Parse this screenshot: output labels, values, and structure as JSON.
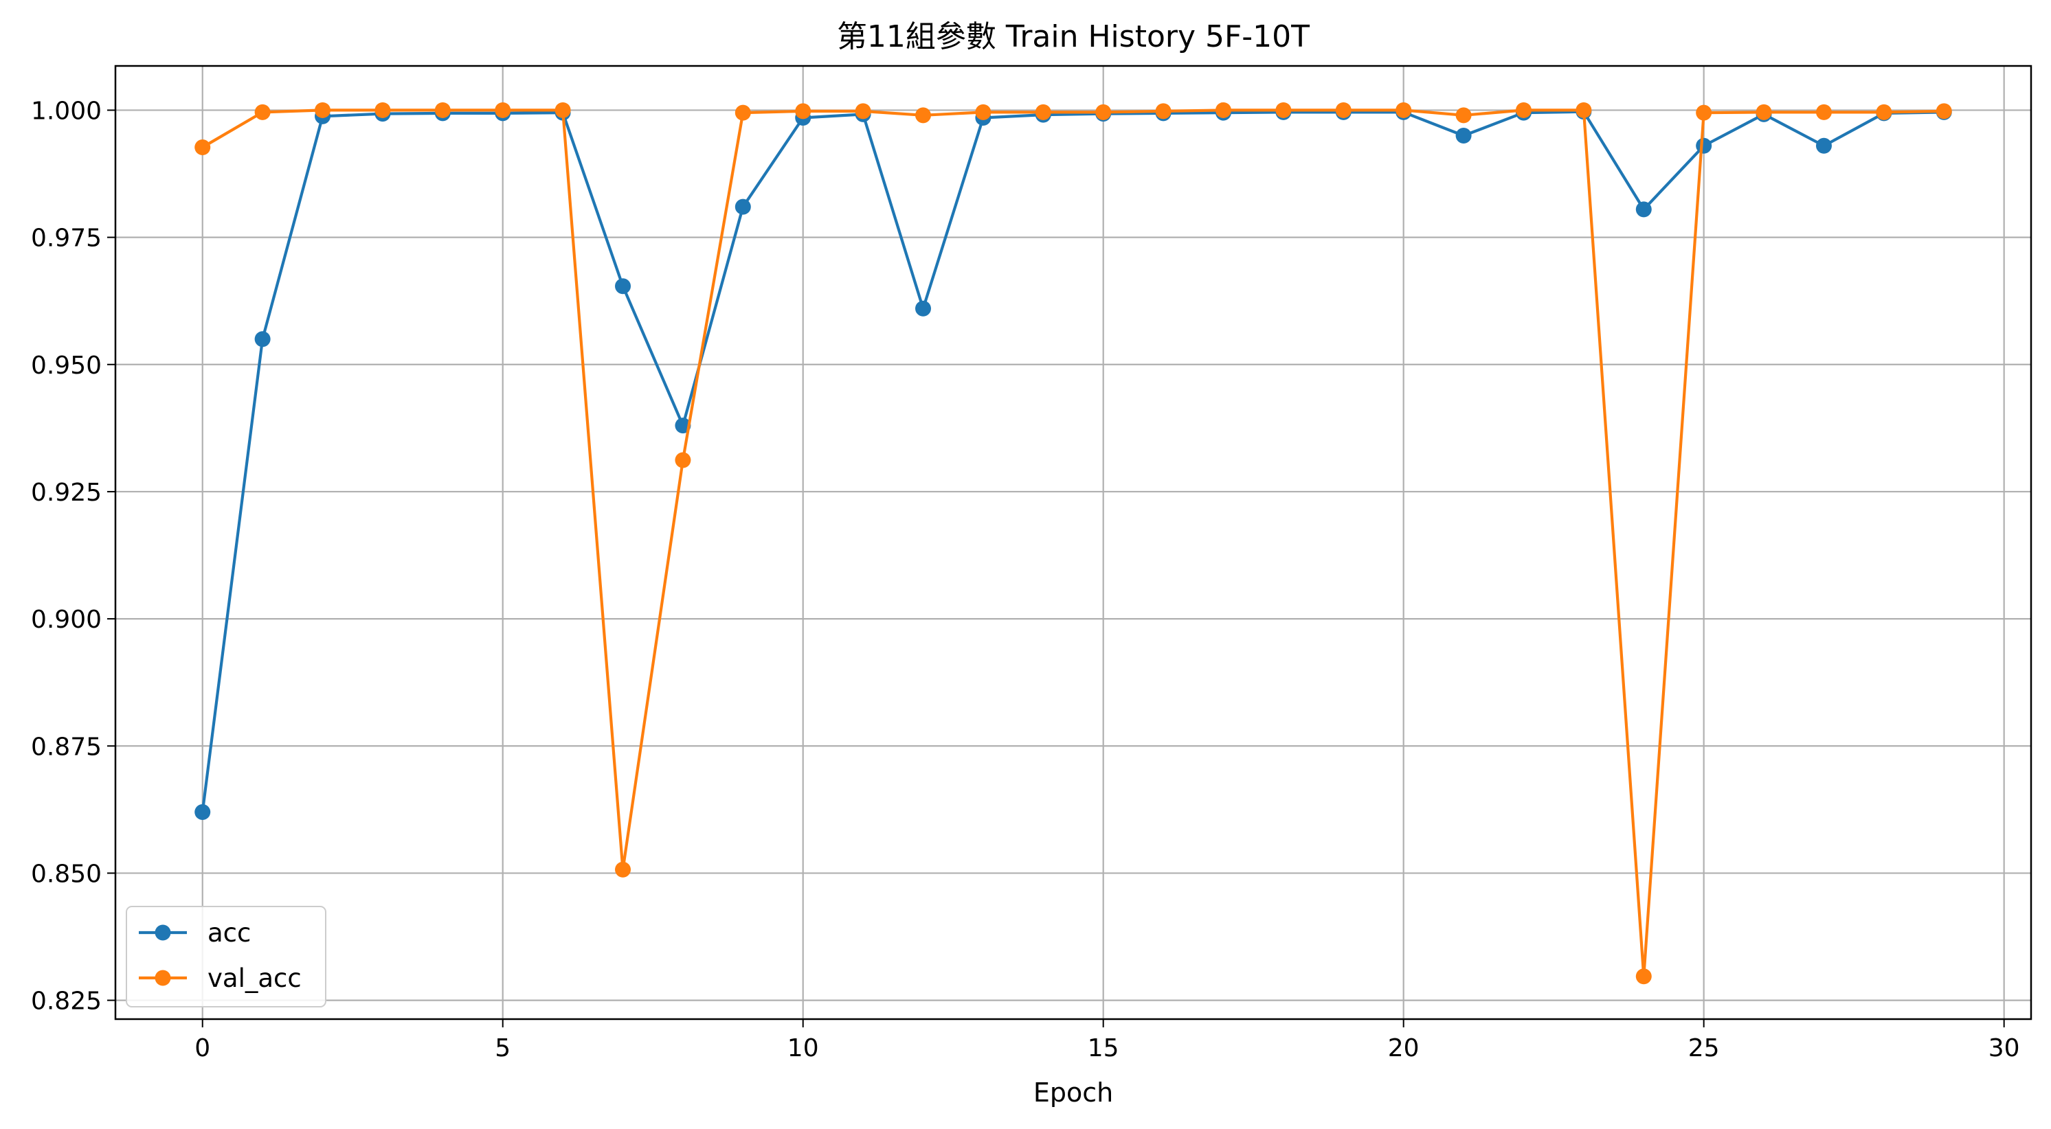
{
  "chart_data": {
    "type": "line",
    "title": "第11組參數 Train History 5F-10T",
    "xlabel": "Epoch",
    "ylabel": "",
    "xlim": [
      -1.45,
      30.45
    ],
    "ylim": [
      0.8213,
      1.0087
    ],
    "grid": true,
    "legend_position": "lower-left",
    "x_ticks": [
      0,
      5,
      10,
      15,
      20,
      25,
      30
    ],
    "x_tick_labels": [
      "0",
      "5",
      "10",
      "15",
      "20",
      "25",
      "30"
    ],
    "y_ticks": [
      0.825,
      0.85,
      0.875,
      0.9,
      0.925,
      0.95,
      0.975,
      1.0
    ],
    "y_tick_labels": [
      "0.825",
      "0.850",
      "0.875",
      "0.900",
      "0.925",
      "0.950",
      "0.975",
      "1.000"
    ],
    "x": [
      0,
      1,
      2,
      3,
      4,
      5,
      6,
      7,
      8,
      9,
      10,
      11,
      12,
      13,
      14,
      15,
      16,
      17,
      18,
      19,
      20,
      21,
      22,
      23,
      24,
      25,
      26,
      27,
      28,
      29
    ],
    "series": [
      {
        "name": "acc",
        "color": "#1f77b4",
        "values": [
          0.862,
          0.955,
          0.9988,
          0.9993,
          0.9994,
          0.9994,
          0.9995,
          0.9654,
          0.938,
          0.981,
          0.9985,
          0.9992,
          0.961,
          0.9985,
          0.9991,
          0.9993,
          0.9994,
          0.9995,
          0.9996,
          0.9996,
          0.9996,
          0.995,
          0.9995,
          0.9997,
          0.9805,
          0.993,
          0.9992,
          0.993,
          0.9994,
          0.9996
        ]
      },
      {
        "name": "val_acc",
        "color": "#ff7f0e",
        "values": [
          0.9927,
          0.9996,
          1.0,
          1.0,
          1.0,
          1.0,
          1.0,
          0.8507,
          0.9312,
          0.9995,
          0.9998,
          0.9998,
          0.999,
          0.9996,
          0.9996,
          0.9996,
          0.9998,
          1.0,
          1.0,
          1.0,
          1.0,
          0.999,
          1.0,
          1.0,
          0.8297,
          0.9995,
          0.9996,
          0.9996,
          0.9996,
          0.9998
        ]
      }
    ]
  }
}
